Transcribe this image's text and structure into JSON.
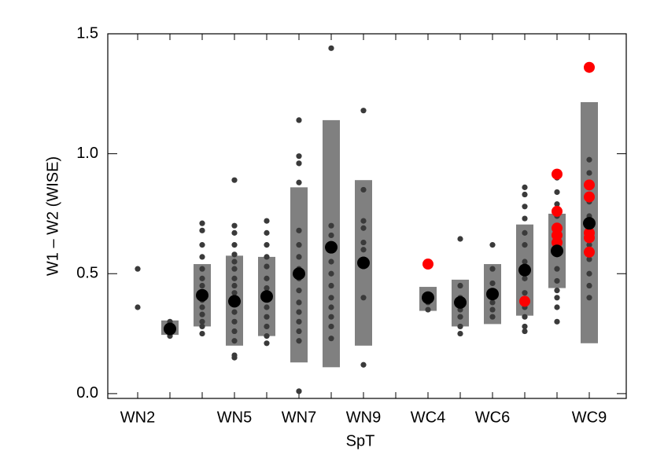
{
  "chart_data": {
    "type": "range_scatter",
    "xlabel": "SpT",
    "ylabel": "W1 – W2 (WISE)",
    "categories": [
      "WN2",
      null,
      null,
      "WN5",
      null,
      "WN7",
      null,
      "WN9",
      null,
      "WC4",
      null,
      "WC6",
      null,
      null,
      "WC9"
    ],
    "means": [
      null,
      0.27,
      0.41,
      0.385,
      0.405,
      0.5,
      0.61,
      0.545,
      null,
      0.4,
      0.38,
      0.415,
      0.515,
      0.595,
      0.71
    ],
    "box_low": [
      null,
      0.245,
      0.28,
      0.2,
      0.24,
      0.13,
      0.11,
      0.2,
      null,
      0.345,
      0.28,
      0.29,
      0.325,
      0.44,
      0.21
    ],
    "box_high": [
      null,
      0.305,
      0.54,
      0.575,
      0.57,
      0.86,
      1.14,
      0.89,
      null,
      0.445,
      0.475,
      0.54,
      0.705,
      0.75,
      1.215
    ],
    "points": [
      [
        0.52,
        0.36
      ],
      [
        0.3,
        0.28,
        0.26,
        0.25,
        0.24
      ],
      [
        0.71,
        0.68,
        0.62,
        0.57,
        0.52,
        0.48,
        0.45,
        0.42,
        0.39,
        0.36,
        0.33,
        0.3,
        0.28,
        0.25
      ],
      [
        0.89,
        0.7,
        0.67,
        0.62,
        0.58,
        0.55,
        0.52,
        0.48,
        0.45,
        0.42,
        0.38,
        0.34,
        0.3,
        0.26,
        0.22,
        0.16,
        0.15
      ],
      [
        0.72,
        0.67,
        0.62,
        0.57,
        0.53,
        0.48,
        0.44,
        0.4,
        0.36,
        0.32,
        0.28,
        0.24,
        0.21
      ],
      [
        1.14,
        0.99,
        0.96,
        0.88,
        0.68,
        0.62,
        0.57,
        0.52,
        0.48,
        0.43,
        0.38,
        0.34,
        0.3,
        0.26,
        0.22,
        0.01
      ],
      [
        1.44,
        0.7,
        0.66,
        0.6,
        0.55,
        0.5,
        0.45,
        0.4,
        0.36,
        0.32,
        0.28,
        0.23
      ],
      [
        1.18,
        0.85,
        0.72,
        0.69,
        0.63,
        0.6,
        0.54,
        0.4,
        0.12
      ],
      [],
      [
        0.38,
        0.35
      ],
      [
        0.645,
        0.45,
        0.4,
        0.35,
        0.32,
        0.28,
        0.25
      ],
      [
        0.62,
        0.52,
        0.46,
        0.42,
        0.38,
        0.35,
        0.32
      ],
      [
        0.86,
        0.83,
        0.78,
        0.73,
        0.67,
        0.62,
        0.55,
        0.48,
        0.42,
        0.36,
        0.32,
        0.28,
        0.26
      ],
      [
        0.9,
        0.84,
        0.79,
        0.74,
        0.7,
        0.65,
        0.58,
        0.52,
        0.47,
        0.43,
        0.4,
        0.36,
        0.3
      ],
      [
        0.975,
        0.92,
        0.86,
        0.8,
        0.74,
        0.68,
        0.62,
        0.56,
        0.5,
        0.45,
        0.4
      ]
    ],
    "highlight_points": [
      [],
      [],
      [],
      [],
      [],
      [],
      [],
      [],
      [],
      [
        0.54
      ],
      [],
      [],
      [
        0.385
      ],
      [
        0.915,
        0.76,
        0.69,
        0.66,
        0.63
      ],
      [
        1.36,
        0.87,
        0.82,
        0.71,
        0.67,
        0.65,
        0.59
      ]
    ],
    "box_color": "#808080",
    "point_color": "#3a3a3a",
    "mean_color": "#000000",
    "highlight_color": "#ff0000",
    "ylim": [
      -0.02,
      1.5
    ],
    "yticks": [
      {
        "value": 0,
        "label": "0.0"
      },
      0.5,
      {
        "value": 1,
        "label": "1.0"
      },
      1.5
    ]
  }
}
